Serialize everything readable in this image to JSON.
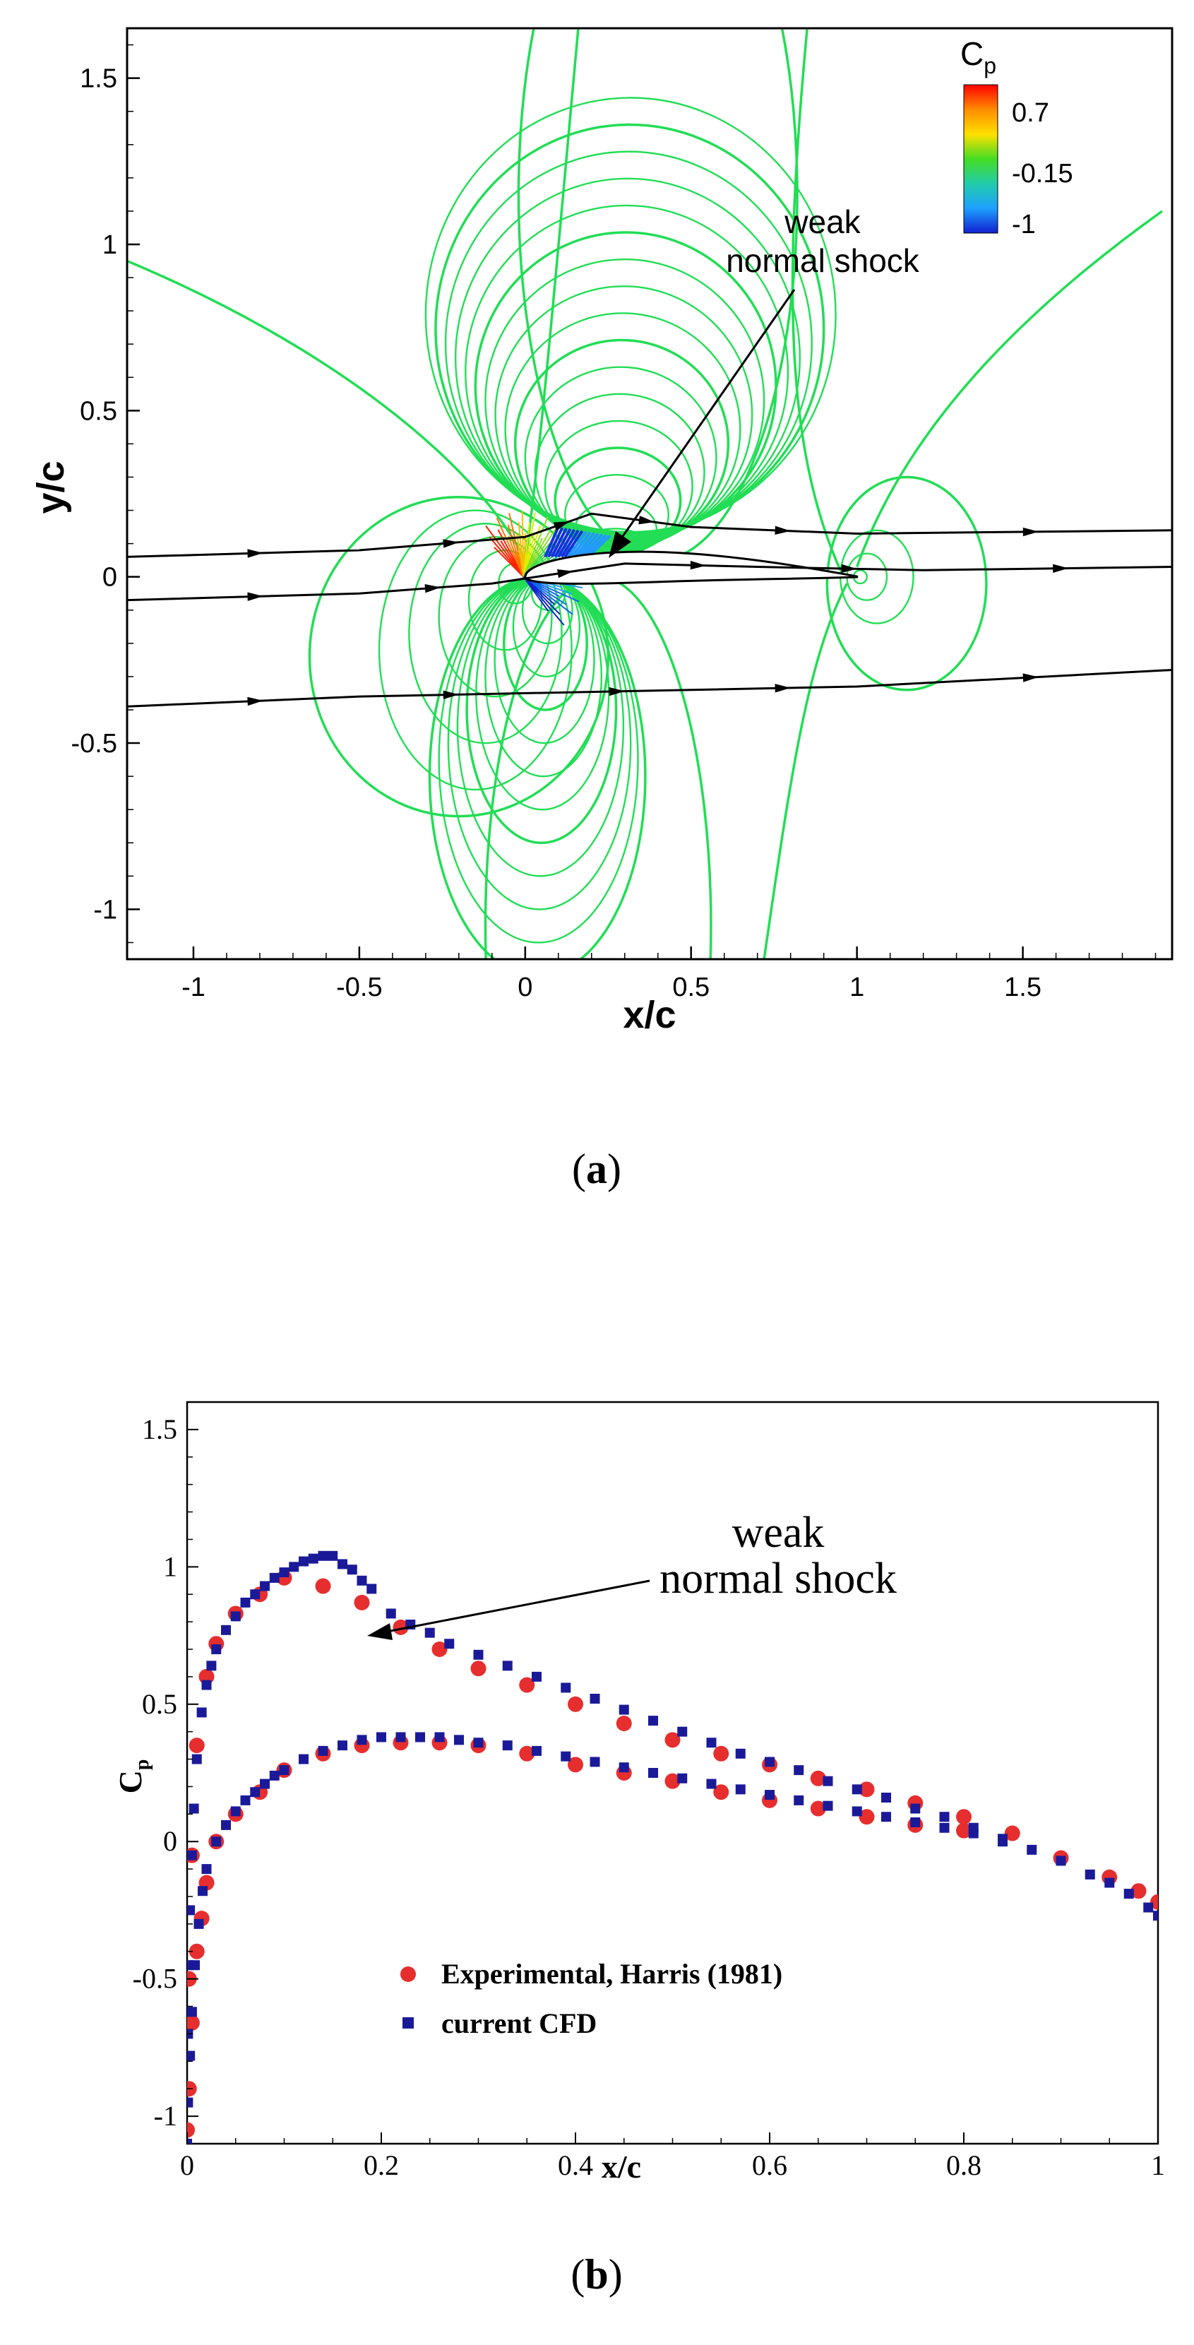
{
  "chart_data": [
    {
      "type": "contour",
      "panel": "(a)",
      "caption_paren_open": "(",
      "caption_letter": "a",
      "caption_paren_close": ")",
      "xlabel": "x/c",
      "ylabel": "y/c",
      "xlim": [
        -1.2,
        1.95
      ],
      "ylim": [
        -1.15,
        1.65
      ],
      "xticks": [
        "-1",
        "-0.5",
        "0",
        "0.5",
        "1",
        "1.5"
      ],
      "yticks": [
        "-1",
        "-0.5",
        "0",
        "0.5",
        "1",
        "1.5"
      ],
      "colorbar": {
        "title": "C",
        "title_sub": "p",
        "labels": [
          "0.7",
          "-0.15",
          "-1"
        ],
        "colors": [
          "#ff0000",
          "#ff8c00",
          "#ffe000",
          "#44dd22",
          "#22ccaa",
          "#1ea0ff",
          "#1020d0"
        ]
      },
      "contour_color": "#22dd55",
      "streamline_color": "#000000",
      "annotation": {
        "line1": "weak",
        "line2": "normal shock"
      }
    },
    {
      "type": "scatter",
      "panel": "(b)",
      "caption_paren_open": "(",
      "caption_letter": "b",
      "caption_paren_close": ")",
      "xlabel": "x/c",
      "ylabel": "C",
      "ylabel_sub": "p",
      "xlim": [
        0,
        1
      ],
      "ylim": [
        -1.1,
        1.6
      ],
      "xticks": [
        "0",
        "0.2",
        "0.4",
        "0.6",
        "0.8",
        "1"
      ],
      "yticks": [
        "-1",
        "-0.5",
        "0",
        "0.5",
        "1",
        "1.5"
      ],
      "annotation": {
        "line1": "weak",
        "line2": "normal shock"
      },
      "legend_position": "bottom-right",
      "series": [
        {
          "name": "Experimental, Harris (1981)",
          "marker": "circle",
          "color": "#e62e2e",
          "upper": [
            [
              0.0,
              -1.05
            ],
            [
              0.002,
              -0.5
            ],
            [
              0.005,
              -0.05
            ],
            [
              0.01,
              0.35
            ],
            [
              0.02,
              0.6
            ],
            [
              0.03,
              0.72
            ],
            [
              0.05,
              0.83
            ],
            [
              0.075,
              0.9
            ],
            [
              0.1,
              0.96
            ],
            [
              0.14,
              0.93
            ],
            [
              0.18,
              0.87
            ],
            [
              0.22,
              0.78
            ],
            [
              0.26,
              0.7
            ],
            [
              0.3,
              0.63
            ],
            [
              0.35,
              0.57
            ],
            [
              0.4,
              0.5
            ],
            [
              0.45,
              0.43
            ],
            [
              0.5,
              0.37
            ],
            [
              0.55,
              0.32
            ],
            [
              0.6,
              0.28
            ],
            [
              0.65,
              0.23
            ],
            [
              0.7,
              0.19
            ],
            [
              0.75,
              0.14
            ],
            [
              0.8,
              0.09
            ],
            [
              0.85,
              0.03
            ],
            [
              0.9,
              -0.06
            ],
            [
              0.95,
              -0.13
            ],
            [
              0.98,
              -0.18
            ],
            [
              1.0,
              -0.22
            ]
          ],
          "lower": [
            [
              0.002,
              -0.9
            ],
            [
              0.005,
              -0.66
            ],
            [
              0.01,
              -0.4
            ],
            [
              0.015,
              -0.28
            ],
            [
              0.02,
              -0.15
            ],
            [
              0.03,
              0.0
            ],
            [
              0.05,
              0.1
            ],
            [
              0.075,
              0.18
            ],
            [
              0.1,
              0.26
            ],
            [
              0.14,
              0.32
            ],
            [
              0.18,
              0.35
            ],
            [
              0.22,
              0.36
            ],
            [
              0.26,
              0.36
            ],
            [
              0.3,
              0.35
            ],
            [
              0.35,
              0.32
            ],
            [
              0.4,
              0.28
            ],
            [
              0.45,
              0.25
            ],
            [
              0.5,
              0.22
            ],
            [
              0.55,
              0.18
            ],
            [
              0.6,
              0.15
            ],
            [
              0.65,
              0.12
            ],
            [
              0.7,
              0.09
            ],
            [
              0.75,
              0.06
            ],
            [
              0.8,
              0.04
            ]
          ]
        },
        {
          "name": "current CFD",
          "marker": "square",
          "color": "#1a1a99",
          "upper": [
            [
              0.0,
              -1.1
            ],
            [
              0.001,
              -0.7
            ],
            [
              0.002,
              -0.45
            ],
            [
              0.003,
              -0.25
            ],
            [
              0.005,
              -0.05
            ],
            [
              0.007,
              0.12
            ],
            [
              0.01,
              0.3
            ],
            [
              0.015,
              0.47
            ],
            [
              0.02,
              0.57
            ],
            [
              0.025,
              0.64
            ],
            [
              0.03,
              0.7
            ],
            [
              0.04,
              0.77
            ],
            [
              0.05,
              0.82
            ],
            [
              0.06,
              0.87
            ],
            [
              0.07,
              0.9
            ],
            [
              0.08,
              0.93
            ],
            [
              0.09,
              0.96
            ],
            [
              0.1,
              0.98
            ],
            [
              0.11,
              1.0
            ],
            [
              0.12,
              1.02
            ],
            [
              0.13,
              1.03
            ],
            [
              0.14,
              1.04
            ],
            [
              0.15,
              1.04
            ],
            [
              0.16,
              1.01
            ],
            [
              0.17,
              0.99
            ],
            [
              0.18,
              0.95
            ],
            [
              0.19,
              0.92
            ],
            [
              0.21,
              0.83
            ],
            [
              0.23,
              0.79
            ],
            [
              0.25,
              0.76
            ],
            [
              0.27,
              0.72
            ],
            [
              0.3,
              0.68
            ],
            [
              0.33,
              0.64
            ],
            [
              0.36,
              0.6
            ],
            [
              0.39,
              0.56
            ],
            [
              0.42,
              0.52
            ],
            [
              0.45,
              0.48
            ],
            [
              0.48,
              0.44
            ],
            [
              0.51,
              0.4
            ],
            [
              0.54,
              0.36
            ],
            [
              0.57,
              0.32
            ],
            [
              0.6,
              0.29
            ],
            [
              0.63,
              0.26
            ],
            [
              0.66,
              0.22
            ],
            [
              0.69,
              0.19
            ],
            [
              0.72,
              0.16
            ],
            [
              0.75,
              0.12
            ],
            [
              0.78,
              0.09
            ],
            [
              0.81,
              0.05
            ],
            [
              0.84,
              0.01
            ],
            [
              0.87,
              -0.03
            ],
            [
              0.9,
              -0.07
            ],
            [
              0.93,
              -0.12
            ],
            [
              0.95,
              -0.15
            ],
            [
              0.97,
              -0.19
            ],
            [
              0.99,
              -0.24
            ],
            [
              1.0,
              -0.27
            ]
          ],
          "lower": [
            [
              0.001,
              -0.95
            ],
            [
              0.003,
              -0.78
            ],
            [
              0.005,
              -0.62
            ],
            [
              0.008,
              -0.45
            ],
            [
              0.012,
              -0.3
            ],
            [
              0.016,
              -0.18
            ],
            [
              0.02,
              -0.1
            ],
            [
              0.03,
              0.0
            ],
            [
              0.04,
              0.06
            ],
            [
              0.05,
              0.11
            ],
            [
              0.06,
              0.15
            ],
            [
              0.07,
              0.18
            ],
            [
              0.08,
              0.21
            ],
            [
              0.09,
              0.24
            ],
            [
              0.1,
              0.26
            ],
            [
              0.12,
              0.3
            ],
            [
              0.14,
              0.33
            ],
            [
              0.16,
              0.35
            ],
            [
              0.18,
              0.37
            ],
            [
              0.2,
              0.38
            ],
            [
              0.22,
              0.38
            ],
            [
              0.24,
              0.38
            ],
            [
              0.26,
              0.38
            ],
            [
              0.28,
              0.37
            ],
            [
              0.3,
              0.36
            ],
            [
              0.33,
              0.35
            ],
            [
              0.36,
              0.33
            ],
            [
              0.39,
              0.31
            ],
            [
              0.42,
              0.29
            ],
            [
              0.45,
              0.27
            ],
            [
              0.48,
              0.25
            ],
            [
              0.51,
              0.23
            ],
            [
              0.54,
              0.21
            ],
            [
              0.57,
              0.19
            ],
            [
              0.6,
              0.17
            ],
            [
              0.63,
              0.15
            ],
            [
              0.66,
              0.13
            ],
            [
              0.69,
              0.11
            ],
            [
              0.72,
              0.09
            ],
            [
              0.75,
              0.07
            ],
            [
              0.78,
              0.05
            ],
            [
              0.81,
              0.03
            ],
            [
              0.84,
              0.0
            ]
          ]
        }
      ]
    }
  ]
}
